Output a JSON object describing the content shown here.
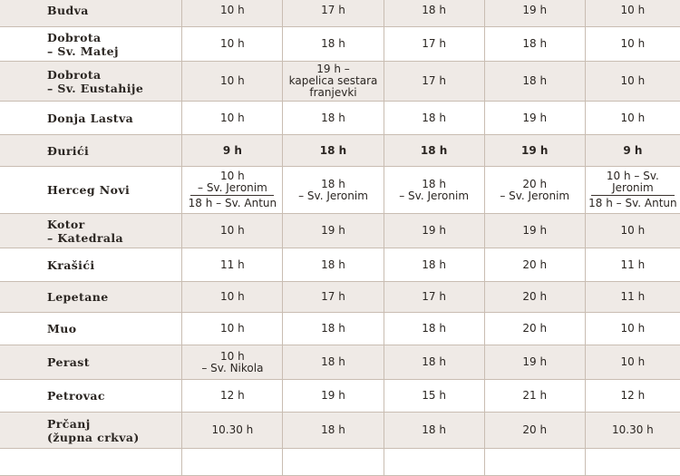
{
  "columns_hint": "mass times",
  "rows": [
    {
      "name": [
        "Budva"
      ],
      "times": [
        "10 h",
        "17 h",
        "18 h",
        "19 h",
        "10 h"
      ],
      "bold": false
    },
    {
      "name": [
        "Dobrota",
        "– Sv. Matej"
      ],
      "times": [
        "10 h",
        "18 h",
        "17 h",
        "18 h",
        "10 h"
      ],
      "bold": false
    },
    {
      "name": [
        "Dobrota",
        "– Sv. Eustahije"
      ],
      "times": [
        "10 h",
        "19 h – kapelica sestara franjevki",
        "17 h",
        "18 h",
        "10 h"
      ],
      "bold": false
    },
    {
      "name": [
        "Donja Lastva"
      ],
      "times": [
        "10 h",
        "18 h",
        "18 h",
        "19 h",
        "10 h"
      ],
      "bold": false
    },
    {
      "name": [
        "Đurići"
      ],
      "times": [
        "9 h",
        "18 h",
        "18 h",
        "19 h",
        "9 h"
      ],
      "bold": true
    },
    {
      "name": [
        "Herceg Novi"
      ],
      "times": [
        "10 h – Sv. Jeronim | 18 h – Sv. Antun",
        "18 h – Sv. Jeronim",
        "18 h – Sv. Jeronim",
        "20 h – Sv. Jeronim",
        "10 h – Sv. Jeronim | 18 h – Sv. Antun"
      ],
      "bold": false
    },
    {
      "name": [
        "Kotor",
        "– Katedrala"
      ],
      "times": [
        "10 h",
        "19 h",
        "19 h",
        "19 h",
        "10 h"
      ],
      "bold": false
    },
    {
      "name": [
        "Krašići"
      ],
      "times": [
        "11 h",
        "18 h",
        "18 h",
        "20 h",
        "11 h"
      ],
      "bold": false
    },
    {
      "name": [
        "Lepetane"
      ],
      "times": [
        "10 h",
        "17 h",
        "17 h",
        "20 h",
        "11 h"
      ],
      "bold": false
    },
    {
      "name": [
        "Muo"
      ],
      "times": [
        "10 h",
        "18 h",
        "18 h",
        "20 h",
        "10 h"
      ],
      "bold": false
    },
    {
      "name": [
        "Perast"
      ],
      "times": [
        "10 h – Sv. Nikola",
        "18 h",
        "18 h",
        "19 h",
        "10 h"
      ],
      "bold": false
    },
    {
      "name": [
        "Petrovac"
      ],
      "times": [
        "12 h",
        "19 h",
        "15 h",
        "21 h",
        "12 h"
      ],
      "bold": false
    },
    {
      "name": [
        "Prčanj",
        "(župna crkva)"
      ],
      "times": [
        "10.30 h",
        "18 h",
        "18 h",
        "20 h",
        "10.30 h"
      ],
      "bold": false
    }
  ],
  "cells": {
    "r0": {
      "n1": "Budva",
      "t": [
        "10 h",
        "17 h",
        "18 h",
        "19 h",
        "10 h"
      ]
    },
    "r1": {
      "n1": "Dobrota",
      "n2": "– Sv. Matej",
      "t": [
        "10 h",
        "18 h",
        "17 h",
        "18 h",
        "10 h"
      ]
    },
    "r2": {
      "n1": "Dobrota",
      "n2": "– Sv. Eustahije",
      "t": [
        "10 h",
        "19 h –",
        "17 h",
        "18 h",
        "10 h"
      ],
      "t1b": "kapelica sestara",
      "t1c": "franjevki"
    },
    "r3": {
      "n1": "Donja Lastva",
      "t": [
        "10 h",
        "18 h",
        "18 h",
        "19 h",
        "10 h"
      ]
    },
    "r4": {
      "n1": "Đurići",
      "t": [
        "9 h",
        "18 h",
        "18 h",
        "19 h",
        "9 h"
      ]
    },
    "r5": {
      "n1": "Herceg Novi",
      "t0a": "10 h",
      "t0b": "– Sv. Jeronim",
      "t0c": "18 h – Sv. Antun",
      "t1a": "18 h",
      "t1b": "– Sv. Jeronim",
      "t2a": "18 h",
      "t2b": "– Sv. Jeronim",
      "t3a": "20 h",
      "t3b": "– Sv. Jeronim",
      "t4a": "10 h – Sv. Jeronim",
      "t4b": "18 h – Sv. Antun"
    },
    "r6": {
      "n1": "Kotor",
      "n2": "– Katedrala",
      "t": [
        "10 h",
        "19 h",
        "19 h",
        "19 h",
        "10 h"
      ]
    },
    "r7": {
      "n1": "Krašići",
      "t": [
        "11 h",
        "18 h",
        "18 h",
        "20 h",
        "11 h"
      ]
    },
    "r8": {
      "n1": "Lepetane",
      "t": [
        "10 h",
        "17 h",
        "17 h",
        "20 h",
        "11 h"
      ]
    },
    "r9": {
      "n1": "Muo",
      "t": [
        "10 h",
        "18 h",
        "18 h",
        "20 h",
        "10 h"
      ]
    },
    "r10": {
      "n1": "Perast",
      "t": [
        "10 h",
        "18 h",
        "18 h",
        "19 h",
        "10 h"
      ],
      "t0b": "– Sv. Nikola"
    },
    "r11": {
      "n1": "Petrovac",
      "t": [
        "12 h",
        "19 h",
        "15 h",
        "21 h",
        "12 h"
      ]
    },
    "r12": {
      "n1": "Prčanj",
      "n2": "(župna crkva)",
      "t": [
        "10.30 h",
        "18 h",
        "18 h",
        "20 h",
        "10.30 h"
      ]
    }
  }
}
